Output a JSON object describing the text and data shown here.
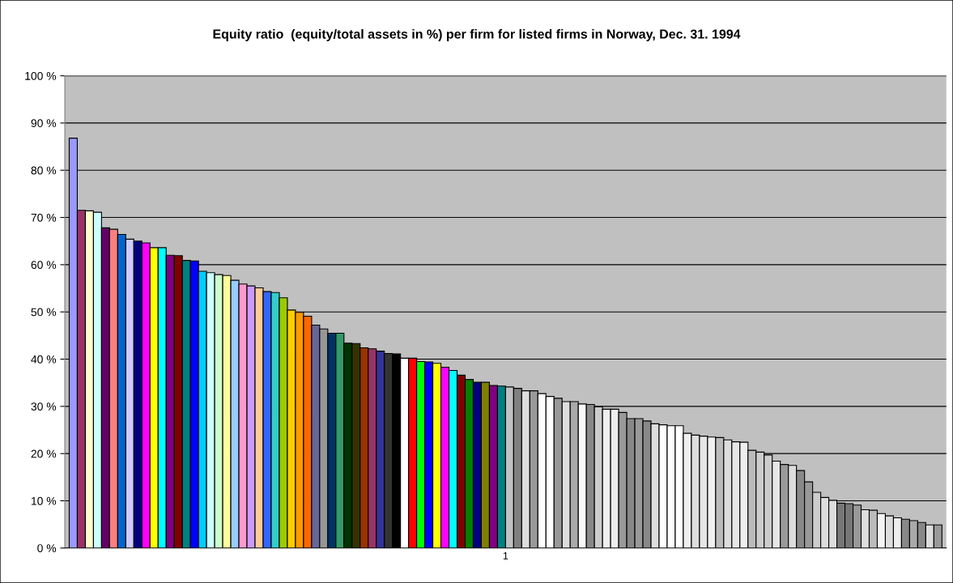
{
  "chart_data": {
    "type": "bar",
    "title": "Equity ratio  (equity/total assets in %) per firm for listed firms in Norway, Dec. 31. 1994",
    "categories": [
      "1"
    ],
    "ylim": [
      0,
      100
    ],
    "yticks": [
      {
        "value": 0,
        "label": "0 %"
      },
      {
        "value": 10,
        "label": "10 %"
      },
      {
        "value": 20,
        "label": "20 %"
      },
      {
        "value": 30,
        "label": "30 %"
      },
      {
        "value": 40,
        "label": "40 %"
      },
      {
        "value": 50,
        "label": "50 %"
      },
      {
        "value": 60,
        "label": "60 %"
      },
      {
        "value": 70,
        "label": "70 %"
      },
      {
        "value": 80,
        "label": "80 %"
      },
      {
        "value": 90,
        "label": "90 %"
      },
      {
        "value": 100,
        "label": "100 %"
      }
    ],
    "grid": "y",
    "legend": false,
    "series": [
      {
        "color": "#9999ff",
        "values": [
          86.8
        ]
      },
      {
        "color": "#993366",
        "values": [
          71.5
        ]
      },
      {
        "color": "#ffffcc",
        "values": [
          71.4
        ]
      },
      {
        "color": "#ccffff",
        "values": [
          71.1
        ]
      },
      {
        "color": "#660066",
        "values": [
          67.8
        ]
      },
      {
        "color": "#ff8080",
        "values": [
          67.5
        ]
      },
      {
        "color": "#0066cc",
        "values": [
          66.4
        ]
      },
      {
        "color": "#ccccff",
        "values": [
          65.4
        ]
      },
      {
        "color": "#000080",
        "values": [
          65.0
        ]
      },
      {
        "color": "#ff00ff",
        "values": [
          64.6
        ]
      },
      {
        "color": "#ffff00",
        "values": [
          63.6
        ]
      },
      {
        "color": "#00ffff",
        "values": [
          63.6
        ]
      },
      {
        "color": "#800080",
        "values": [
          62.0
        ]
      },
      {
        "color": "#800000",
        "values": [
          61.9
        ]
      },
      {
        "color": "#008080",
        "values": [
          60.9
        ]
      },
      {
        "color": "#0000ff",
        "values": [
          60.8
        ]
      },
      {
        "color": "#00ccff",
        "values": [
          58.6
        ]
      },
      {
        "color": "#ccffff",
        "values": [
          58.3
        ]
      },
      {
        "color": "#ccffcc",
        "values": [
          57.9
        ]
      },
      {
        "color": "#ffff99",
        "values": [
          57.7
        ]
      },
      {
        "color": "#99ccff",
        "values": [
          56.7
        ]
      },
      {
        "color": "#ff99cc",
        "values": [
          55.9
        ]
      },
      {
        "color": "#cc99ff",
        "values": [
          55.5
        ]
      },
      {
        "color": "#ffcc99",
        "values": [
          55.1
        ]
      },
      {
        "color": "#3366ff",
        "values": [
          54.3
        ]
      },
      {
        "color": "#33cccc",
        "values": [
          54.1
        ]
      },
      {
        "color": "#99cc00",
        "values": [
          53.0
        ]
      },
      {
        "color": "#ffcc00",
        "values": [
          50.4
        ]
      },
      {
        "color": "#ff9900",
        "values": [
          49.9
        ]
      },
      {
        "color": "#ff6600",
        "values": [
          49.1
        ]
      },
      {
        "color": "#666699",
        "values": [
          47.2
        ]
      },
      {
        "color": "#969696",
        "values": [
          46.4
        ]
      },
      {
        "color": "#003366",
        "values": [
          45.5
        ]
      },
      {
        "color": "#339966",
        "values": [
          45.5
        ]
      },
      {
        "color": "#003300",
        "values": [
          43.4
        ]
      },
      {
        "color": "#333300",
        "values": [
          43.3
        ]
      },
      {
        "color": "#993300",
        "values": [
          42.4
        ]
      },
      {
        "color": "#993366",
        "values": [
          42.2
        ]
      },
      {
        "color": "#333399",
        "values": [
          41.7
        ]
      },
      {
        "color": "#333333",
        "values": [
          41.2
        ]
      },
      {
        "color": "#000000",
        "values": [
          41.1
        ]
      },
      {
        "color": "#ffffff",
        "values": [
          40.2
        ]
      },
      {
        "color": "#ff0000",
        "values": [
          40.2
        ]
      },
      {
        "color": "#00ff00",
        "values": [
          39.5
        ]
      },
      {
        "color": "#0000ff",
        "values": [
          39.4
        ]
      },
      {
        "color": "#ffff00",
        "values": [
          39.1
        ]
      },
      {
        "color": "#ff00ff",
        "values": [
          38.3
        ]
      },
      {
        "color": "#00ffff",
        "values": [
          37.6
        ]
      },
      {
        "color": "#800000",
        "values": [
          36.6
        ]
      },
      {
        "color": "#008000",
        "values": [
          35.7
        ]
      },
      {
        "color": "#000080",
        "values": [
          35.1
        ]
      },
      {
        "color": "#808000",
        "values": [
          35.1
        ]
      },
      {
        "color": "#800080",
        "values": [
          34.4
        ]
      },
      {
        "color": "#008080",
        "values": [
          34.3
        ]
      },
      {
        "color": "#c0c0c0",
        "values": [
          34.1
        ]
      },
      {
        "color": "#808080",
        "values": [
          33.8
        ]
      },
      {
        "color": "#dddddd",
        "values": [
          33.3
        ]
      },
      {
        "color": "#999999",
        "values": [
          33.3
        ]
      },
      {
        "color": "#ffffff",
        "values": [
          32.7
        ]
      },
      {
        "color": "#ffffff",
        "values": [
          32.1
        ]
      },
      {
        "color": "#999999",
        "values": [
          31.7
        ]
      },
      {
        "color": "#dddddd",
        "values": [
          31.0
        ]
      },
      {
        "color": "#aaaaaa",
        "values": [
          31.0
        ]
      },
      {
        "color": "#f8f8f8",
        "values": [
          30.5
        ]
      },
      {
        "color": "#888888",
        "values": [
          30.4
        ]
      },
      {
        "color": "#cccccc",
        "values": [
          29.9
        ]
      },
      {
        "color": "#eeeeee",
        "values": [
          29.4
        ]
      },
      {
        "color": "#eeeeee",
        "values": [
          29.4
        ]
      },
      {
        "color": "#999999",
        "values": [
          28.7
        ]
      },
      {
        "color": "#888888",
        "values": [
          27.4
        ]
      },
      {
        "color": "#999999",
        "values": [
          27.4
        ]
      },
      {
        "color": "#888888",
        "values": [
          26.9
        ]
      },
      {
        "color": "#dddddd",
        "values": [
          26.3
        ]
      },
      {
        "color": "#ffffff",
        "values": [
          26.1
        ]
      },
      {
        "color": "#ffffff",
        "values": [
          25.9
        ]
      },
      {
        "color": "#ffffff",
        "values": [
          25.9
        ]
      },
      {
        "color": "#eeeeee",
        "values": [
          24.3
        ]
      },
      {
        "color": "#dddddd",
        "values": [
          23.9
        ]
      },
      {
        "color": "#e6e6e6",
        "values": [
          23.7
        ]
      },
      {
        "color": "#f0f0f0",
        "values": [
          23.5
        ]
      },
      {
        "color": "#bbbbbb",
        "values": [
          23.4
        ]
      },
      {
        "color": "#dddddd",
        "values": [
          22.9
        ]
      },
      {
        "color": "#e6e6e6",
        "values": [
          22.5
        ]
      },
      {
        "color": "#eeeeee",
        "values": [
          22.4
        ]
      },
      {
        "color": "#bbbbbb",
        "values": [
          20.7
        ]
      },
      {
        "color": "#cccccc",
        "values": [
          20.3
        ]
      },
      {
        "color": "#cccccc",
        "values": [
          19.7
        ]
      },
      {
        "color": "#e6e6e6",
        "values": [
          18.4
        ]
      },
      {
        "color": "#999999",
        "values": [
          17.7
        ]
      },
      {
        "color": "#dddddd",
        "values": [
          17.5
        ]
      },
      {
        "color": "#888888",
        "values": [
          16.4
        ]
      },
      {
        "color": "#999999",
        "values": [
          14.0
        ]
      },
      {
        "color": "#cccccc",
        "values": [
          11.8
        ]
      },
      {
        "color": "#dddddd",
        "values": [
          10.7
        ]
      },
      {
        "color": "#dddddd",
        "values": [
          10.1
        ]
      },
      {
        "color": "#777777",
        "values": [
          9.5
        ]
      },
      {
        "color": "#777777",
        "values": [
          9.4
        ]
      },
      {
        "color": "#999999",
        "values": [
          9.1
        ]
      },
      {
        "color": "#dddddd",
        "values": [
          8.1
        ]
      },
      {
        "color": "#bbbbbb",
        "values": [
          8.0
        ]
      },
      {
        "color": "#f4f4f4",
        "values": [
          7.3
        ]
      },
      {
        "color": "#dddddd",
        "values": [
          6.8
        ]
      },
      {
        "color": "#eeeeee",
        "values": [
          6.4
        ]
      },
      {
        "color": "#888888",
        "values": [
          6.1
        ]
      },
      {
        "color": "#aaaaaa",
        "values": [
          5.8
        ]
      },
      {
        "color": "#888888",
        "values": [
          5.4
        ]
      },
      {
        "color": "#dddddd",
        "values": [
          4.9
        ]
      },
      {
        "color": "#999999",
        "values": [
          4.9
        ]
      }
    ]
  }
}
